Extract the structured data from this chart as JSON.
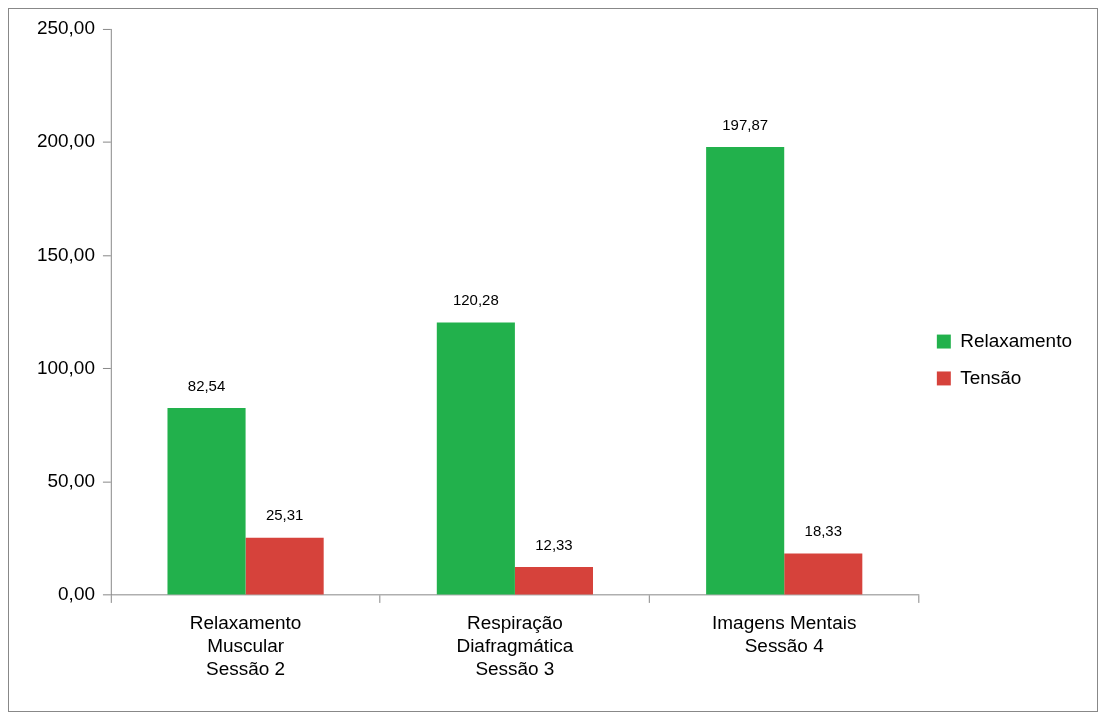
{
  "chart_data": {
    "type": "bar",
    "categories": [
      "Relaxamento\nMuscular\nSessão 2",
      "Respiração\nDiafragmática\nSessão 3",
      "Imagens Mentais\nSessão 4"
    ],
    "series": [
      {
        "name": "Relaxamento",
        "color": "#22b14c",
        "values": [
          82.54,
          120.28,
          197.87
        ],
        "value_labels": [
          "82,54",
          "120,28",
          "197,87"
        ]
      },
      {
        "name": "Tensão",
        "color": "#d6423b",
        "values": [
          25.31,
          12.33,
          18.33
        ],
        "value_labels": [
          "25,31",
          "12,33",
          "18,33"
        ]
      }
    ],
    "ylim": [
      0,
      250
    ],
    "yticks": [
      {
        "value": 0,
        "label": "0,00"
      },
      {
        "value": 50,
        "label": "50,00"
      },
      {
        "value": 100,
        "label": "100,00"
      },
      {
        "value": 150,
        "label": "150,00"
      },
      {
        "value": 200,
        "label": "200,00"
      },
      {
        "value": 250,
        "label": "250,00"
      }
    ],
    "legend": "right"
  }
}
